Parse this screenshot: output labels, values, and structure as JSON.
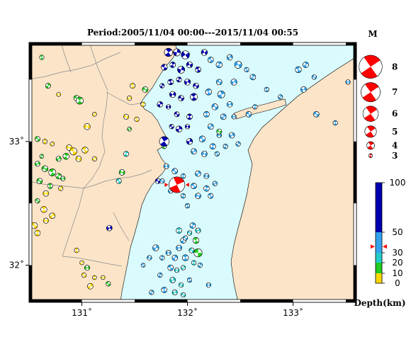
{
  "title": "Period:2005/11/04 00:00---2015/11/04 00:55",
  "map": {
    "lon_range": [
      130.5,
      133.6
    ],
    "lat_range": [
      31.7,
      33.8
    ],
    "x_ticks": [
      {
        "lon": 131,
        "label": "131˚"
      },
      {
        "lon": 132,
        "label": "132˚"
      },
      {
        "lon": 133,
        "label": "133˚"
      }
    ],
    "y_ticks": [
      {
        "lat": 33,
        "label": "33˚"
      },
      {
        "lat": 32,
        "label": "32˚"
      }
    ],
    "colors": {
      "sea": "#d9fbfd",
      "land": "#fbe4c8",
      "border": "#000000",
      "prefecture_line": "#8a8a8a"
    }
  },
  "magnitude_legend": {
    "title": "M",
    "entries": [
      {
        "mag": 8,
        "label": "8"
      },
      {
        "mag": 7,
        "label": "7"
      },
      {
        "mag": 6,
        "label": "6"
      },
      {
        "mag": 5,
        "label": "5"
      },
      {
        "mag": 4,
        "label": "4"
      },
      {
        "mag": 3,
        "label": "3"
      }
    ],
    "color": "#ff0000"
  },
  "depth_scale": {
    "ticks": [
      {
        "value": 0,
        "label": "0"
      },
      {
        "value": 10,
        "label": "10"
      },
      {
        "value": 20,
        "label": "20"
      },
      {
        "value": 30,
        "label": "30"
      },
      {
        "value": 50,
        "label": "50"
      },
      {
        "value": 100,
        "label": "100"
      }
    ],
    "segments": [
      {
        "from": 0,
        "to": 10,
        "color": "#ffd700"
      },
      {
        "from": 10,
        "to": 20,
        "color": "#22cc22"
      },
      {
        "from": 20,
        "to": 30,
        "color": "#22cccc"
      },
      {
        "from": 30,
        "to": 50,
        "color": "#33a3ee"
      },
      {
        "from": 50,
        "to": 100,
        "color": "#0000b0"
      }
    ],
    "latest_marker_depth": 36,
    "label": "Depth(km)"
  },
  "latest_event": {
    "lon": 131.9,
    "lat": 32.65,
    "mag": 5.5,
    "color": "#ff0000"
  },
  "events": [
    {
      "lon": 130.62,
      "lat": 33.68,
      "mag": 3.3,
      "depth": 15
    },
    {
      "lon": 130.68,
      "lat": 33.45,
      "mag": 3.4,
      "depth": 12
    },
    {
      "lon": 130.78,
      "lat": 33.38,
      "mag": 3.2,
      "depth": 8
    },
    {
      "lon": 130.95,
      "lat": 33.35,
      "mag": 3.5,
      "depth": 11
    },
    {
      "lon": 130.98,
      "lat": 33.33,
      "mag": 3.8,
      "depth": 14
    },
    {
      "lon": 131.12,
      "lat": 33.22,
      "mag": 3.2,
      "depth": 6
    },
    {
      "lon": 131.05,
      "lat": 33.12,
      "mag": 3.6,
      "depth": 3
    },
    {
      "lon": 130.58,
      "lat": 33.02,
      "mag": 3.4,
      "depth": 13
    },
    {
      "lon": 130.65,
      "lat": 33.0,
      "mag": 3.3,
      "depth": 7
    },
    {
      "lon": 130.72,
      "lat": 32.98,
      "mag": 3.2,
      "depth": 9
    },
    {
      "lon": 130.88,
      "lat": 32.95,
      "mag": 3.5,
      "depth": 4
    },
    {
      "lon": 130.92,
      "lat": 32.92,
      "mag": 3.8,
      "depth": 7
    },
    {
      "lon": 130.85,
      "lat": 32.88,
      "mag": 3.6,
      "depth": 13
    },
    {
      "lon": 130.78,
      "lat": 32.86,
      "mag": 3.4,
      "depth": 14
    },
    {
      "lon": 130.97,
      "lat": 32.86,
      "mag": 3.5,
      "depth": 5
    },
    {
      "lon": 131.03,
      "lat": 32.93,
      "mag": 3.6,
      "depth": 5
    },
    {
      "lon": 130.62,
      "lat": 32.88,
      "mag": 3.2,
      "depth": 12
    },
    {
      "lon": 130.58,
      "lat": 32.82,
      "mag": 3.4,
      "depth": 14
    },
    {
      "lon": 130.65,
      "lat": 32.78,
      "mag": 3.6,
      "depth": 15
    },
    {
      "lon": 130.72,
      "lat": 32.75,
      "mag": 3.8,
      "depth": 13
    },
    {
      "lon": 130.78,
      "lat": 32.72,
      "mag": 3.5,
      "depth": 12
    },
    {
      "lon": 130.82,
      "lat": 32.7,
      "mag": 3.3,
      "depth": 14
    },
    {
      "lon": 130.6,
      "lat": 32.68,
      "mag": 3.5,
      "depth": 14
    },
    {
      "lon": 130.7,
      "lat": 32.64,
      "mag": 3.4,
      "depth": 11
    },
    {
      "lon": 130.8,
      "lat": 32.62,
      "mag": 3.3,
      "depth": 6
    },
    {
      "lon": 130.66,
      "lat": 32.58,
      "mag": 3.5,
      "depth": 9
    },
    {
      "lon": 130.58,
      "lat": 32.52,
      "mag": 3.3,
      "depth": 13
    },
    {
      "lon": 130.64,
      "lat": 32.45,
      "mag": 3.6,
      "depth": 4
    },
    {
      "lon": 130.72,
      "lat": 32.4,
      "mag": 3.5,
      "depth": 8
    },
    {
      "lon": 130.66,
      "lat": 32.36,
      "mag": 3.4,
      "depth": 5
    },
    {
      "lon": 130.55,
      "lat": 32.32,
      "mag": 3.6,
      "depth": 5
    },
    {
      "lon": 130.58,
      "lat": 32.26,
      "mag": 3.5,
      "depth": 4
    },
    {
      "lon": 131.12,
      "lat": 32.86,
      "mag": 3.3,
      "depth": 6
    },
    {
      "lon": 131.38,
      "lat": 32.75,
      "mag": 3.5,
      "depth": 16
    },
    {
      "lon": 131.35,
      "lat": 32.68,
      "mag": 3.4,
      "depth": 25
    },
    {
      "lon": 131.42,
      "lat": 32.9,
      "mag": 3.4,
      "depth": 22
    },
    {
      "lon": 131.45,
      "lat": 33.1,
      "mag": 3.2,
      "depth": 14
    },
    {
      "lon": 131.42,
      "lat": 33.2,
      "mag": 3.4,
      "depth": 4
    },
    {
      "lon": 131.52,
      "lat": 33.18,
      "mag": 3.3,
      "depth": 7
    },
    {
      "lon": 131.58,
      "lat": 33.3,
      "mag": 3.3,
      "depth": 4
    },
    {
      "lon": 131.45,
      "lat": 33.35,
      "mag": 3.3,
      "depth": 9
    },
    {
      "lon": 131.6,
      "lat": 33.42,
      "mag": 3.5,
      "depth": 17
    },
    {
      "lon": 131.48,
      "lat": 33.45,
      "mag": 3.4,
      "depth": 8
    },
    {
      "lon": 131.78,
      "lat": 32.96,
      "mag": 3.3,
      "depth": 15
    },
    {
      "lon": 131.26,
      "lat": 32.3,
      "mag": 3.5,
      "depth": 75
    },
    {
      "lon": 131.72,
      "lat": 32.68,
      "mag": 3.4,
      "depth": 80
    },
    {
      "lon": 130.95,
      "lat": 32.12,
      "mag": 3.3,
      "depth": 5
    },
    {
      "lon": 131.0,
      "lat": 32.02,
      "mag": 3.2,
      "depth": 6
    },
    {
      "lon": 131.05,
      "lat": 31.98,
      "mag": 3.4,
      "depth": 11
    },
    {
      "lon": 131.02,
      "lat": 31.92,
      "mag": 3.3,
      "depth": 7
    },
    {
      "lon": 131.12,
      "lat": 31.9,
      "mag": 3.2,
      "depth": 9
    },
    {
      "lon": 131.08,
      "lat": 31.83,
      "mag": 3.5,
      "depth": 4
    },
    {
      "lon": 131.2,
      "lat": 31.9,
      "mag": 3.2,
      "depth": 5
    },
    {
      "lon": 131.25,
      "lat": 31.85,
      "mag": 3.3,
      "depth": 13
    },
    {
      "lon": 131.82,
      "lat": 33.72,
      "mag": 4.0,
      "depth": 80
    },
    {
      "lon": 131.9,
      "lat": 33.72,
      "mag": 3.8,
      "depth": 70
    },
    {
      "lon": 131.98,
      "lat": 33.7,
      "mag": 4.0,
      "depth": 82
    },
    {
      "lon": 131.78,
      "lat": 33.6,
      "mag": 3.6,
      "depth": 90
    },
    {
      "lon": 131.86,
      "lat": 33.62,
      "mag": 3.5,
      "depth": 75
    },
    {
      "lon": 131.94,
      "lat": 33.58,
      "mag": 3.8,
      "depth": 88
    },
    {
      "lon": 132.02,
      "lat": 33.62,
      "mag": 3.6,
      "depth": 70
    },
    {
      "lon": 132.1,
      "lat": 33.58,
      "mag": 3.5,
      "depth": 80
    },
    {
      "lon": 131.92,
      "lat": 33.5,
      "mag": 3.4,
      "depth": 85
    },
    {
      "lon": 132.0,
      "lat": 33.48,
      "mag": 3.6,
      "depth": 78
    },
    {
      "lon": 132.08,
      "lat": 33.45,
      "mag": 3.5,
      "depth": 72
    },
    {
      "lon": 131.84,
      "lat": 33.48,
      "mag": 3.5,
      "depth": 88
    },
    {
      "lon": 131.76,
      "lat": 33.45,
      "mag": 3.3,
      "depth": 92
    },
    {
      "lon": 131.86,
      "lat": 33.38,
      "mag": 3.6,
      "depth": 80
    },
    {
      "lon": 131.94,
      "lat": 33.35,
      "mag": 3.5,
      "depth": 76
    },
    {
      "lon": 132.06,
      "lat": 33.36,
      "mag": 3.8,
      "depth": 68
    },
    {
      "lon": 131.74,
      "lat": 33.3,
      "mag": 3.5,
      "depth": 85
    },
    {
      "lon": 131.82,
      "lat": 33.28,
      "mag": 3.3,
      "depth": 90
    },
    {
      "lon": 131.9,
      "lat": 33.22,
      "mag": 3.4,
      "depth": 72
    },
    {
      "lon": 132.02,
      "lat": 33.2,
      "mag": 3.5,
      "depth": 66
    },
    {
      "lon": 131.92,
      "lat": 33.1,
      "mag": 3.6,
      "depth": 84
    },
    {
      "lon": 132.0,
      "lat": 33.12,
      "mag": 3.3,
      "depth": 78
    },
    {
      "lon": 131.85,
      "lat": 33.12,
      "mag": 3.3,
      "depth": 90
    },
    {
      "lon": 131.78,
      "lat": 33.0,
      "mag": 4.3,
      "depth": 95
    },
    {
      "lon": 132.02,
      "lat": 33.0,
      "mag": 3.6,
      "depth": 70
    },
    {
      "lon": 132.16,
      "lat": 33.72,
      "mag": 3.6,
      "depth": 68
    },
    {
      "lon": 132.22,
      "lat": 33.66,
      "mag": 3.5,
      "depth": 45
    },
    {
      "lon": 132.3,
      "lat": 33.62,
      "mag": 3.6,
      "depth": 40
    },
    {
      "lon": 132.4,
      "lat": 33.68,
      "mag": 3.5,
      "depth": 42
    },
    {
      "lon": 132.48,
      "lat": 33.62,
      "mag": 3.8,
      "depth": 44
    },
    {
      "lon": 132.56,
      "lat": 33.58,
      "mag": 3.3,
      "depth": 40
    },
    {
      "lon": 132.62,
      "lat": 33.52,
      "mag": 3.5,
      "depth": 46
    },
    {
      "lon": 132.44,
      "lat": 33.48,
      "mag": 3.6,
      "depth": 42
    },
    {
      "lon": 132.3,
      "lat": 33.48,
      "mag": 3.5,
      "depth": 38
    },
    {
      "lon": 132.2,
      "lat": 33.4,
      "mag": 3.6,
      "depth": 42
    },
    {
      "lon": 132.32,
      "lat": 33.38,
      "mag": 3.8,
      "depth": 44
    },
    {
      "lon": 132.4,
      "lat": 33.3,
      "mag": 3.5,
      "depth": 40
    },
    {
      "lon": 132.26,
      "lat": 33.28,
      "mag": 3.6,
      "depth": 36
    },
    {
      "lon": 132.18,
      "lat": 33.22,
      "mag": 3.5,
      "depth": 40
    },
    {
      "lon": 132.34,
      "lat": 33.2,
      "mag": 3.5,
      "depth": 38
    },
    {
      "lon": 132.44,
      "lat": 33.2,
      "mag": 3.3,
      "depth": 42
    },
    {
      "lon": 132.58,
      "lat": 33.22,
      "mag": 3.5,
      "depth": 44
    },
    {
      "lon": 132.64,
      "lat": 33.28,
      "mag": 3.3,
      "depth": 40
    },
    {
      "lon": 132.22,
      "lat": 33.12,
      "mag": 3.5,
      "depth": 38
    },
    {
      "lon": 132.3,
      "lat": 33.05,
      "mag": 3.3,
      "depth": 40
    },
    {
      "lon": 132.14,
      "lat": 33.02,
      "mag": 3.6,
      "depth": 42
    },
    {
      "lon": 132.24,
      "lat": 32.96,
      "mag": 3.5,
      "depth": 38
    },
    {
      "lon": 132.06,
      "lat": 32.92,
      "mag": 3.5,
      "depth": 40
    },
    {
      "lon": 132.16,
      "lat": 32.9,
      "mag": 3.5,
      "depth": 36
    },
    {
      "lon": 132.28,
      "lat": 32.9,
      "mag": 3.3,
      "depth": 42
    },
    {
      "lon": 132.36,
      "lat": 32.96,
      "mag": 3.3,
      "depth": 44
    },
    {
      "lon": 132.42,
      "lat": 33.05,
      "mag": 3.5,
      "depth": 40
    },
    {
      "lon": 132.3,
      "lat": 33.08,
      "mag": 3.4,
      "depth": 15
    },
    {
      "lon": 133.05,
      "lat": 33.58,
      "mag": 3.6,
      "depth": 38
    },
    {
      "lon": 133.12,
      "lat": 33.62,
      "mag": 3.5,
      "depth": 42
    },
    {
      "lon": 133.1,
      "lat": 33.42,
      "mag": 3.5,
      "depth": 44
    },
    {
      "lon": 133.2,
      "lat": 33.52,
      "mag": 3.3,
      "depth": 40
    },
    {
      "lon": 132.75,
      "lat": 33.42,
      "mag": 3.3,
      "depth": 38
    },
    {
      "lon": 132.88,
      "lat": 33.36,
      "mag": 3.3,
      "depth": 42
    },
    {
      "lon": 133.52,
      "lat": 33.48,
      "mag": 3.3,
      "depth": 40
    },
    {
      "lon": 133.22,
      "lat": 33.22,
      "mag": 3.5,
      "depth": 44
    },
    {
      "lon": 133.4,
      "lat": 33.15,
      "mag": 3.3,
      "depth": 36
    },
    {
      "lon": 132.48,
      "lat": 32.98,
      "mag": 3.3,
      "depth": 40
    },
    {
      "lon": 131.8,
      "lat": 32.8,
      "mag": 3.4,
      "depth": 40
    },
    {
      "lon": 131.88,
      "lat": 32.76,
      "mag": 3.5,
      "depth": 42
    },
    {
      "lon": 131.96,
      "lat": 32.72,
      "mag": 3.3,
      "depth": 38
    },
    {
      "lon": 132.1,
      "lat": 32.74,
      "mag": 3.5,
      "depth": 40
    },
    {
      "lon": 132.18,
      "lat": 32.72,
      "mag": 3.4,
      "depth": 44
    },
    {
      "lon": 132.06,
      "lat": 32.64,
      "mag": 3.5,
      "depth": 40
    },
    {
      "lon": 132.18,
      "lat": 32.62,
      "mag": 3.5,
      "depth": 42
    },
    {
      "lon": 132.26,
      "lat": 32.66,
      "mag": 3.3,
      "depth": 38
    },
    {
      "lon": 132.1,
      "lat": 32.56,
      "mag": 3.5,
      "depth": 40
    },
    {
      "lon": 132.22,
      "lat": 32.56,
      "mag": 3.4,
      "depth": 44
    },
    {
      "lon": 131.96,
      "lat": 32.56,
      "mag": 3.3,
      "depth": 40
    },
    {
      "lon": 131.84,
      "lat": 32.6,
      "mag": 3.3,
      "depth": 36
    },
    {
      "lon": 131.76,
      "lat": 32.68,
      "mag": 3.3,
      "depth": 40
    },
    {
      "lon": 132.0,
      "lat": 32.48,
      "mag": 3.3,
      "depth": 42
    },
    {
      "lon": 132.05,
      "lat": 32.32,
      "mag": 3.5,
      "depth": 40
    },
    {
      "lon": 132.1,
      "lat": 32.28,
      "mag": 3.4,
      "depth": 25
    },
    {
      "lon": 132.02,
      "lat": 32.26,
      "mag": 3.3,
      "depth": 28
    },
    {
      "lon": 132.08,
      "lat": 32.2,
      "mag": 3.6,
      "depth": 16
    },
    {
      "lon": 131.96,
      "lat": 32.2,
      "mag": 3.5,
      "depth": 40
    },
    {
      "lon": 131.92,
      "lat": 32.14,
      "mag": 3.5,
      "depth": 42
    },
    {
      "lon": 132.04,
      "lat": 32.12,
      "mag": 3.4,
      "depth": 26
    },
    {
      "lon": 131.98,
      "lat": 32.06,
      "mag": 3.6,
      "depth": 40
    },
    {
      "lon": 131.88,
      "lat": 32.06,
      "mag": 3.5,
      "depth": 44
    },
    {
      "lon": 131.82,
      "lat": 32.1,
      "mag": 3.4,
      "depth": 38
    },
    {
      "lon": 132.1,
      "lat": 32.1,
      "mag": 4.0,
      "depth": 14
    },
    {
      "lon": 132.06,
      "lat": 32.02,
      "mag": 3.3,
      "depth": 24
    },
    {
      "lon": 131.96,
      "lat": 31.98,
      "mag": 3.3,
      "depth": 26
    },
    {
      "lon": 131.9,
      "lat": 31.96,
      "mag": 3.3,
      "depth": 22
    },
    {
      "lon": 131.84,
      "lat": 31.98,
      "mag": 3.5,
      "depth": 40
    },
    {
      "lon": 131.76,
      "lat": 32.06,
      "mag": 3.3,
      "depth": 36
    },
    {
      "lon": 131.7,
      "lat": 32.14,
      "mag": 3.6,
      "depth": 42
    },
    {
      "lon": 131.64,
      "lat": 32.06,
      "mag": 3.3,
      "depth": 40
    },
    {
      "lon": 131.58,
      "lat": 32.0,
      "mag": 3.2,
      "depth": 38
    },
    {
      "lon": 131.74,
      "lat": 31.92,
      "mag": 3.3,
      "depth": 40
    },
    {
      "lon": 131.86,
      "lat": 31.88,
      "mag": 3.5,
      "depth": 22
    },
    {
      "lon": 131.94,
      "lat": 31.84,
      "mag": 3.3,
      "depth": 24
    },
    {
      "lon": 132.02,
      "lat": 31.88,
      "mag": 3.3,
      "depth": 40
    },
    {
      "lon": 132.12,
      "lat": 32.0,
      "mag": 3.3,
      "depth": 42
    },
    {
      "lon": 131.88,
      "lat": 31.78,
      "mag": 3.4,
      "depth": 24
    },
    {
      "lon": 131.96,
      "lat": 31.76,
      "mag": 3.3,
      "depth": 26
    },
    {
      "lon": 131.78,
      "lat": 31.8,
      "mag": 3.5,
      "depth": 40
    },
    {
      "lon": 131.66,
      "lat": 31.78,
      "mag": 3.3,
      "depth": 40
    },
    {
      "lon": 132.2,
      "lat": 31.84,
      "mag": 3.3,
      "depth": 40
    },
    {
      "lon": 131.98,
      "lat": 32.22,
      "mag": 3.3,
      "depth": 40
    },
    {
      "lon": 131.92,
      "lat": 32.28,
      "mag": 3.5,
      "depth": 26
    }
  ]
}
